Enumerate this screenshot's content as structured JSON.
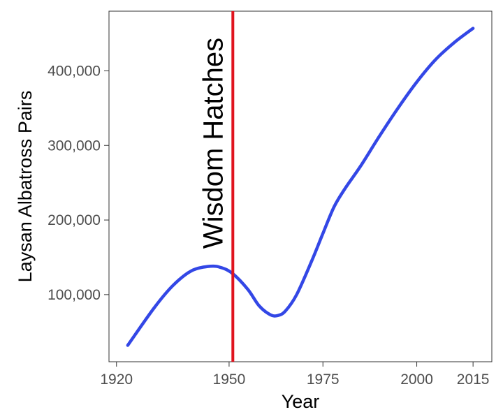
{
  "chart_data": {
    "type": "line",
    "title": "",
    "xlabel": "Year",
    "ylabel": "Laysan Albatross Pairs",
    "xlim": [
      1918,
      2020
    ],
    "ylim": [
      10000,
      480000
    ],
    "x_ticks": [
      1920,
      1950,
      1975,
      2000,
      2015
    ],
    "x_tick_labels": [
      "1920",
      "1950",
      "1975",
      "2000",
      "2015"
    ],
    "y_ticks": [
      100000,
      200000,
      300000,
      400000
    ],
    "y_tick_labels": [
      "100,000",
      "200,000",
      "300,000",
      "400,000"
    ],
    "grid": false,
    "series": [
      {
        "color": "#3347e6",
        "x": [
          1923,
          1930,
          1935,
          1940,
          1945,
          1948,
          1951,
          1955,
          1958,
          1961,
          1963,
          1965,
          1968,
          1972,
          1975,
          1978,
          1981,
          1985,
          1990,
          1995,
          2000,
          2005,
          2010,
          2015
        ],
        "y": [
          32000,
          82000,
          112000,
          132000,
          138000,
          136000,
          128000,
          107000,
          85000,
          73000,
          72000,
          78000,
          100000,
          145000,
          182000,
          218000,
          243000,
          272000,
          312000,
          350000,
          385000,
          415000,
          438000,
          457000
        ]
      }
    ],
    "annotations": [
      {
        "type": "vline",
        "x": 1951,
        "color": "#e0141e",
        "label": "Wisdom Hatches"
      }
    ]
  }
}
